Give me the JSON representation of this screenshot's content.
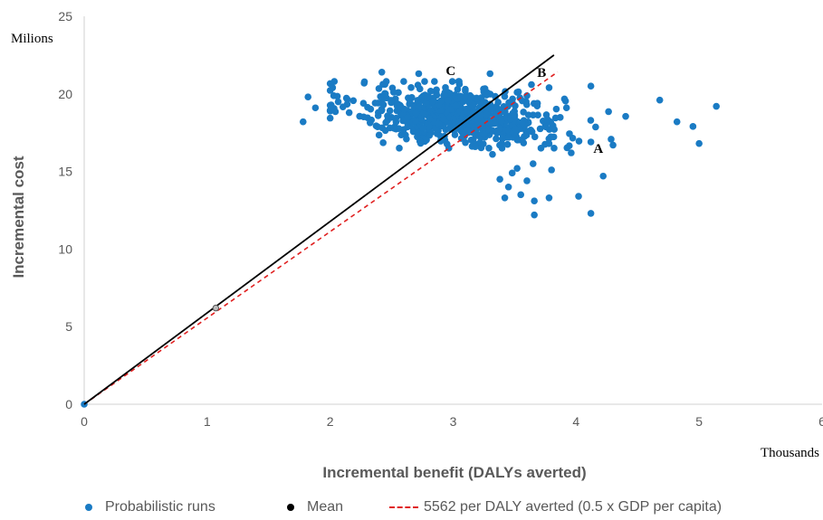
{
  "chart_data": {
    "type": "scatter",
    "xlabel": "Incremental benefit (DALYs averted)",
    "ylabel": "Incremental cost",
    "x_unit": "Thousands",
    "y_unit": "Milions",
    "xlim": [
      0,
      6
    ],
    "ylim": [
      0,
      25
    ],
    "x_ticks": [
      "0",
      "1",
      "2",
      "3",
      "4",
      "5",
      "6"
    ],
    "y_ticks": [
      "0",
      "5",
      "10",
      "15",
      "20",
      "25"
    ],
    "grid": false,
    "legend_position": "bottom",
    "series": [
      {
        "name": "Probabilistic runs",
        "color": "#1a7bc4",
        "cloud": {
          "n": 680,
          "x_mean": 3.05,
          "y_mean": 18.6,
          "x_sd": 0.42,
          "y_sd": 0.95,
          "correlation": -0.25
        },
        "points": [
          {
            "x": 1.78,
            "y": 18.2
          },
          {
            "x": 1.82,
            "y": 19.8
          },
          {
            "x": 1.88,
            "y": 19.1
          },
          {
            "x": 2.02,
            "y": 20.4
          },
          {
            "x": 2.42,
            "y": 21.4
          },
          {
            "x": 2.72,
            "y": 21.3
          },
          {
            "x": 3.3,
            "y": 21.3
          },
          {
            "x": 3.52,
            "y": 20.1
          },
          {
            "x": 3.78,
            "y": 20.4
          },
          {
            "x": 4.12,
            "y": 20.5
          },
          {
            "x": 4.68,
            "y": 19.6
          },
          {
            "x": 5.14,
            "y": 19.2
          },
          {
            "x": 4.82,
            "y": 18.2
          },
          {
            "x": 4.95,
            "y": 17.9
          },
          {
            "x": 5.0,
            "y": 16.8
          },
          {
            "x": 4.3,
            "y": 16.7
          },
          {
            "x": 4.12,
            "y": 16.9
          },
          {
            "x": 3.96,
            "y": 16.2
          },
          {
            "x": 3.65,
            "y": 15.5
          },
          {
            "x": 3.52,
            "y": 15.2
          },
          {
            "x": 3.48,
            "y": 14.9
          },
          {
            "x": 3.38,
            "y": 14.5
          },
          {
            "x": 3.6,
            "y": 14.4
          },
          {
            "x": 3.8,
            "y": 15.1
          },
          {
            "x": 4.22,
            "y": 14.7
          },
          {
            "x": 3.45,
            "y": 14.0
          },
          {
            "x": 3.55,
            "y": 13.5
          },
          {
            "x": 3.66,
            "y": 13.1
          },
          {
            "x": 3.78,
            "y": 13.3
          },
          {
            "x": 3.42,
            "y": 13.3
          },
          {
            "x": 4.02,
            "y": 13.4
          },
          {
            "x": 3.66,
            "y": 12.2
          },
          {
            "x": 4.12,
            "y": 12.3
          },
          {
            "x": 3.25,
            "y": 17.4
          },
          {
            "x": 3.18,
            "y": 16.6
          },
          {
            "x": 3.32,
            "y": 16.1
          },
          {
            "x": 0.0,
            "y": 0.0
          }
        ]
      },
      {
        "name": "Mean",
        "color": "#000000",
        "points": [
          {
            "x": 1.07,
            "y": 6.2
          }
        ],
        "line_to": {
          "x": 3.82,
          "y": 22.5
        }
      },
      {
        "name": "5562 per DALY averted (0.5 x GDP per capita)",
        "color": "#e02020",
        "dash": true,
        "slope_per_thousand_dalys_millions": 5.562,
        "x_range": [
          0,
          3.85
        ]
      }
    ],
    "annotations": [
      {
        "text": "A",
        "x": 4.18,
        "y": 16.2
      },
      {
        "text": "B",
        "x": 3.72,
        "y": 21.1
      },
      {
        "text": "C",
        "x": 2.98,
        "y": 21.2
      }
    ]
  },
  "legend": {
    "scatter_label": "Probabilistic runs",
    "mean_label": "Mean",
    "threshold_label": "5562 per DALY averted (0.5 x GDP per capita)"
  }
}
